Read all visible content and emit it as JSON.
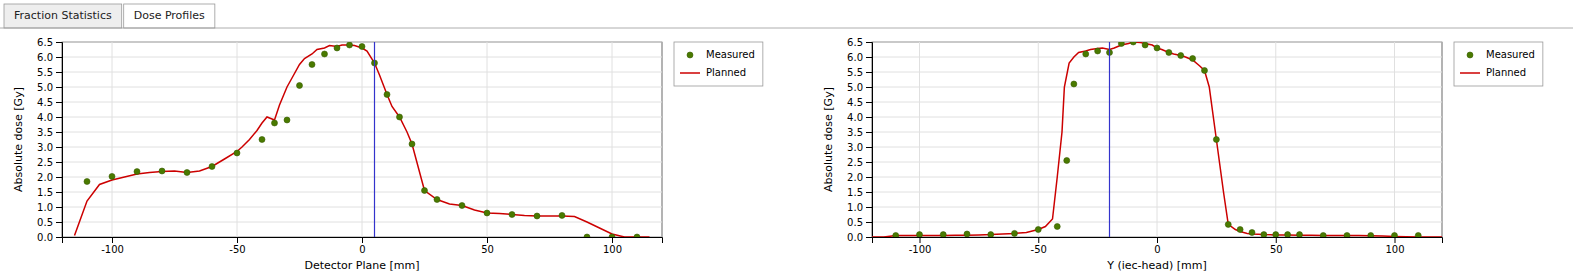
{
  "tabs": [
    "Fraction Statistics",
    "Dose Profiles"
  ],
  "chart_data": [
    {
      "type": "line",
      "xlabel": "Detector Plane [mm]",
      "ylabel": "Absolute dose [Gy]",
      "xlim": [
        -120,
        120
      ],
      "ylim": [
        0.0,
        6.5
      ],
      "xticks": [
        -100,
        -50,
        0,
        50,
        100
      ],
      "yticks": [
        {
          "value": 0.0,
          "label": "0.0"
        },
        0.5,
        {
          "value": 1.0,
          "label": "1.0"
        },
        1.5,
        {
          "value": 2.0,
          "label": "2.0"
        },
        2.5,
        {
          "value": 3.0,
          "label": "3.0"
        },
        3.5,
        {
          "value": 4.0,
          "label": "4.0"
        },
        4.5,
        {
          "value": 5.0,
          "label": "5.0"
        },
        5.5,
        {
          "value": 6.0,
          "label": "6.0"
        },
        6.5
      ],
      "grid": true,
      "legend": "right",
      "vline_x": 5,
      "vline_color": "#3333cc",
      "series": [
        {
          "name": "Measured",
          "type": "scatter",
          "marker": "circle",
          "color": "#4a7a00",
          "x": [
            -110,
            -100,
            -90,
            -80,
            -70,
            -60,
            -50,
            -40,
            -35,
            -30,
            -25,
            -20,
            -15,
            -10,
            -5,
            0,
            5,
            10,
            15,
            20,
            25,
            30,
            40,
            50,
            60,
            70,
            80,
            90,
            100,
            110
          ],
          "values": [
            1.85,
            2.02,
            2.18,
            2.2,
            2.15,
            2.35,
            2.8,
            3.25,
            3.8,
            3.9,
            5.05,
            5.75,
            6.1,
            6.3,
            6.4,
            6.35,
            5.8,
            4.75,
            4.0,
            3.1,
            1.55,
            1.25,
            1.05,
            0.8,
            0.75,
            0.7,
            0.72,
            0.0,
            0.0,
            0.0
          ]
        },
        {
          "name": "Planned",
          "type": "line",
          "line_style": "solid",
          "color": "#cc0000",
          "x": [
            -115,
            -110,
            -105,
            -100,
            -95,
            -90,
            -85,
            -80,
            -75,
            -70,
            -65,
            -60,
            -55,
            -50,
            -48,
            -45,
            -42,
            -40,
            -38,
            -35,
            -33,
            -30,
            -28,
            -25,
            -23,
            -20,
            -18,
            -15,
            -13,
            -10,
            -8,
            -5,
            -3,
            0,
            2,
            5,
            7,
            10,
            12,
            15,
            18,
            20,
            25,
            30,
            35,
            40,
            45,
            50,
            55,
            60,
            65,
            70,
            75,
            80,
            85,
            90,
            95,
            100,
            105,
            110,
            113,
            115
          ],
          "values": [
            0.05,
            1.2,
            1.75,
            1.9,
            2.0,
            2.1,
            2.15,
            2.18,
            2.2,
            2.15,
            2.2,
            2.35,
            2.6,
            2.85,
            3.0,
            3.25,
            3.55,
            3.8,
            4.0,
            3.9,
            4.4,
            5.0,
            5.3,
            5.75,
            5.95,
            6.1,
            6.25,
            6.3,
            6.38,
            6.35,
            6.4,
            6.4,
            6.38,
            6.3,
            6.2,
            5.8,
            5.4,
            4.75,
            4.35,
            4.0,
            3.5,
            3.1,
            1.55,
            1.25,
            1.1,
            1.05,
            0.9,
            0.8,
            0.78,
            0.75,
            0.72,
            0.7,
            0.7,
            0.7,
            0.68,
            0.5,
            0.3,
            0.1,
            0.0,
            0.0,
            0.0,
            0.0
          ]
        }
      ]
    },
    {
      "type": "line",
      "xlabel": "Y (iec-head) [mm]",
      "ylabel": "Absolute dose [Gy]",
      "xlim": [
        -120,
        120
      ],
      "ylim": [
        0.0,
        6.5
      ],
      "xticks": [
        -100,
        -50,
        0,
        50,
        100
      ],
      "yticks": [
        {
          "value": 0.0,
          "label": "0.0"
        },
        0.5,
        {
          "value": 1.0,
          "label": "1.0"
        },
        1.5,
        {
          "value": 2.0,
          "label": "2.0"
        },
        2.5,
        {
          "value": 3.0,
          "label": "3.0"
        },
        3.5,
        {
          "value": 4.0,
          "label": "4.0"
        },
        4.5,
        {
          "value": 5.0,
          "label": "5.0"
        },
        5.5,
        {
          "value": 6.0,
          "label": "6.0"
        },
        6.5
      ],
      "grid": true,
      "legend": "right",
      "vline_x": -20,
      "vline_color": "#3333cc",
      "series": [
        {
          "name": "Measured",
          "type": "scatter",
          "marker": "circle",
          "color": "#4a7a00",
          "x": [
            -110,
            -100,
            -90,
            -80,
            -70,
            -60,
            -50,
            -42,
            -38,
            -35,
            -30,
            -25,
            -20,
            -15,
            -10,
            -5,
            0,
            5,
            10,
            15,
            20,
            25,
            30,
            35,
            40,
            45,
            50,
            55,
            60,
            70,
            80,
            90,
            100,
            110
          ],
          "values": [
            0.05,
            0.08,
            0.08,
            0.1,
            0.08,
            0.12,
            0.25,
            0.35,
            2.55,
            5.1,
            6.1,
            6.2,
            6.15,
            6.45,
            6.5,
            6.4,
            6.3,
            6.15,
            6.05,
            5.95,
            5.55,
            3.25,
            0.42,
            0.25,
            0.15,
            0.08,
            0.08,
            0.08,
            0.08,
            0.05,
            0.05,
            0.05,
            0.05,
            0.05
          ]
        },
        {
          "name": "Planned",
          "type": "line",
          "line_style": "solid",
          "color": "#cc0000",
          "x": [
            -120,
            -115,
            -110,
            -105,
            -100,
            -95,
            -90,
            -85,
            -80,
            -75,
            -70,
            -65,
            -60,
            -55,
            -50,
            -47,
            -44,
            -42,
            -40,
            -39,
            -37,
            -35,
            -33,
            -30,
            -28,
            -25,
            -23,
            -20,
            -18,
            -15,
            -12,
            -10,
            -7,
            -5,
            -2,
            0,
            2,
            5,
            7,
            10,
            12,
            15,
            18,
            20,
            22,
            25,
            28,
            30,
            33,
            35,
            38,
            40,
            45,
            50,
            55,
            60,
            65,
            70,
            75,
            80,
            85,
            90,
            95,
            100,
            105,
            110,
            115,
            120
          ],
          "values": [
            0.0,
            0.0,
            0.05,
            0.05,
            0.05,
            0.05,
            0.05,
            0.06,
            0.06,
            0.07,
            0.08,
            0.1,
            0.12,
            0.15,
            0.25,
            0.35,
            0.6,
            2.0,
            3.5,
            5.0,
            5.8,
            6.0,
            6.15,
            6.2,
            6.25,
            6.28,
            6.3,
            6.25,
            6.3,
            6.4,
            6.45,
            6.5,
            6.48,
            6.45,
            6.4,
            6.3,
            6.25,
            6.15,
            6.1,
            6.05,
            6.0,
            5.9,
            5.7,
            5.55,
            5.0,
            3.25,
            1.5,
            0.42,
            0.25,
            0.18,
            0.12,
            0.1,
            0.08,
            0.07,
            0.07,
            0.06,
            0.06,
            0.05,
            0.05,
            0.05,
            0.05,
            0.04,
            0.03,
            0.02,
            0.01,
            0.0,
            0.0,
            0.0
          ]
        }
      ]
    }
  ]
}
